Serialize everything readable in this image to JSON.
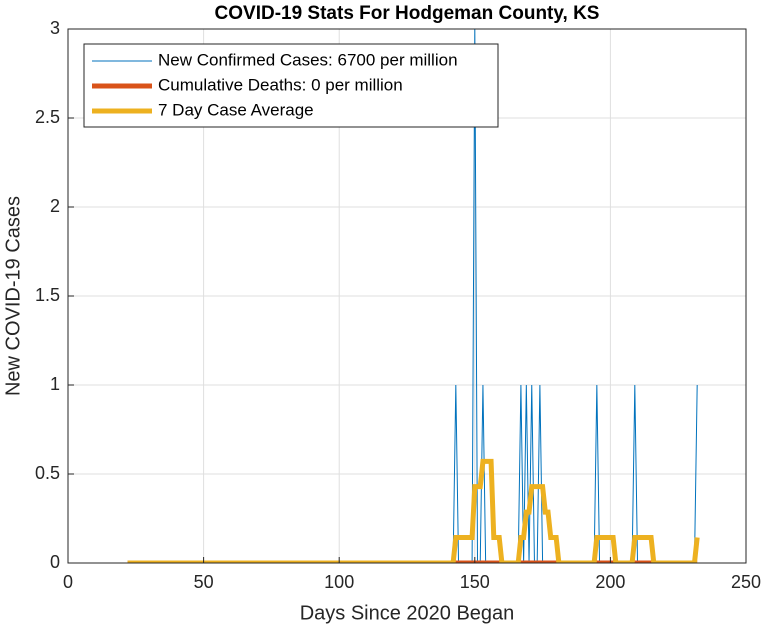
{
  "chart_data": {
    "type": "line",
    "title": "COVID-19 Stats For Hodgeman County, KS",
    "xlabel": "Days Since 2020 Began",
    "ylabel": "New COVID-19 Cases",
    "xlim": [
      0,
      250
    ],
    "ylim": [
      0,
      3
    ],
    "xticks": [
      0,
      50,
      100,
      150,
      200,
      250
    ],
    "yticks": [
      0,
      0.5,
      1,
      1.5,
      2,
      2.5,
      3
    ],
    "grid": true,
    "legend": "upper left",
    "x": [
      22,
      23,
      24,
      25,
      26,
      27,
      28,
      29,
      30,
      31,
      32,
      33,
      34,
      35,
      36,
      37,
      38,
      39,
      40,
      41,
      42,
      43,
      44,
      45,
      46,
      47,
      48,
      49,
      50,
      51,
      52,
      53,
      54,
      55,
      56,
      57,
      58,
      59,
      60,
      61,
      62,
      63,
      64,
      65,
      66,
      67,
      68,
      69,
      70,
      71,
      72,
      73,
      74,
      75,
      76,
      77,
      78,
      79,
      80,
      81,
      82,
      83,
      84,
      85,
      86,
      87,
      88,
      89,
      90,
      91,
      92,
      93,
      94,
      95,
      96,
      97,
      98,
      99,
      100,
      101,
      102,
      103,
      104,
      105,
      106,
      107,
      108,
      109,
      110,
      111,
      112,
      113,
      114,
      115,
      116,
      117,
      118,
      119,
      120,
      121,
      122,
      123,
      124,
      125,
      126,
      127,
      128,
      129,
      130,
      131,
      132,
      133,
      134,
      135,
      136,
      137,
      138,
      139,
      140,
      141,
      142,
      143,
      144,
      145,
      146,
      147,
      148,
      149,
      150,
      151,
      152,
      153,
      154,
      155,
      156,
      157,
      158,
      159,
      160,
      161,
      162,
      163,
      164,
      165,
      166,
      167,
      168,
      169,
      170,
      171,
      172,
      173,
      174,
      175,
      176,
      177,
      178,
      179,
      180,
      181,
      182,
      183,
      184,
      185,
      186,
      187,
      188,
      189,
      190,
      191,
      192,
      193,
      194,
      195,
      196,
      197,
      198,
      199,
      200,
      201,
      202,
      203,
      204,
      205,
      206,
      207,
      208,
      209,
      210,
      211,
      212,
      213,
      214,
      215,
      216,
      217,
      218,
      219,
      220,
      221,
      222,
      223,
      224,
      225,
      226,
      227,
      228,
      229,
      230,
      231,
      232
    ],
    "series": [
      {
        "name": "New Confirmed Cases: 6700 per million",
        "color": "#0072BD",
        "width": 1,
        "values": [
          0,
          0,
          0,
          0,
          0,
          0,
          0,
          0,
          0,
          0,
          0,
          0,
          0,
          0,
          0,
          0,
          0,
          0,
          0,
          0,
          0,
          0,
          0,
          0,
          0,
          0,
          0,
          0,
          0,
          0,
          0,
          0,
          0,
          0,
          0,
          0,
          0,
          0,
          0,
          0,
          0,
          0,
          0,
          0,
          0,
          0,
          0,
          0,
          0,
          0,
          0,
          0,
          0,
          0,
          0,
          0,
          0,
          0,
          0,
          0,
          0,
          0,
          0,
          0,
          0,
          0,
          0,
          0,
          0,
          0,
          0,
          0,
          0,
          0,
          0,
          0,
          0,
          0,
          0,
          0,
          0,
          0,
          0,
          0,
          0,
          0,
          0,
          0,
          0,
          0,
          0,
          0,
          0,
          0,
          0,
          0,
          0,
          0,
          0,
          0,
          0,
          0,
          0,
          0,
          0,
          0,
          0,
          0,
          0,
          0,
          0,
          0,
          0,
          0,
          0,
          0,
          0,
          0,
          0,
          0,
          0,
          1,
          0,
          0,
          0,
          0,
          0,
          0,
          3,
          0,
          0,
          1,
          0,
          0,
          0,
          0,
          0,
          0,
          0,
          0,
          0,
          0,
          0,
          0,
          0,
          1,
          0,
          1,
          0,
          1,
          0,
          0,
          1,
          0,
          0,
          0,
          0,
          0,
          0,
          0,
          0,
          0,
          0,
          0,
          0,
          0,
          0,
          0,
          0,
          0,
          0,
          0,
          0,
          1,
          0,
          0,
          0,
          0,
          0,
          0,
          0,
          0,
          0,
          0,
          0,
          0,
          0,
          1,
          0,
          0,
          0,
          0,
          0,
          0,
          0,
          0,
          0,
          0,
          0,
          0,
          0,
          0,
          0,
          0,
          0,
          0,
          0,
          0,
          0,
          0,
          1
        ]
      },
      {
        "name": "Cumulative Deaths: 0 per million",
        "color": "#D95319",
        "width": 5,
        "values": [
          0,
          0,
          0,
          0,
          0,
          0,
          0,
          0,
          0,
          0,
          0,
          0,
          0,
          0,
          0,
          0,
          0,
          0,
          0,
          0,
          0,
          0,
          0,
          0,
          0,
          0,
          0,
          0,
          0,
          0,
          0,
          0,
          0,
          0,
          0,
          0,
          0,
          0,
          0,
          0,
          0,
          0,
          0,
          0,
          0,
          0,
          0,
          0,
          0,
          0,
          0,
          0,
          0,
          0,
          0,
          0,
          0,
          0,
          0,
          0,
          0,
          0,
          0,
          0,
          0,
          0,
          0,
          0,
          0,
          0,
          0,
          0,
          0,
          0,
          0,
          0,
          0,
          0,
          0,
          0,
          0,
          0,
          0,
          0,
          0,
          0,
          0,
          0,
          0,
          0,
          0,
          0,
          0,
          0,
          0,
          0,
          0,
          0,
          0,
          0,
          0,
          0,
          0,
          0,
          0,
          0,
          0,
          0,
          0,
          0,
          0,
          0,
          0,
          0,
          0,
          0,
          0,
          0,
          0,
          0,
          0,
          0,
          0,
          0,
          0,
          0,
          0,
          0,
          0,
          0,
          0,
          0,
          0,
          0,
          0,
          0,
          0,
          0,
          0,
          0,
          0,
          0,
          0,
          0,
          0,
          0,
          0,
          0,
          0,
          0,
          0,
          0,
          0,
          0,
          0,
          0,
          0,
          0,
          0,
          0,
          0,
          0,
          0,
          0,
          0,
          0,
          0,
          0,
          0,
          0,
          0,
          0,
          0,
          0,
          0,
          0,
          0,
          0,
          0,
          0,
          0,
          0,
          0,
          0,
          0,
          0,
          0,
          0,
          0,
          0,
          0,
          0,
          0,
          0,
          0,
          0,
          0,
          0,
          0,
          0,
          0,
          0,
          0,
          0,
          0,
          0,
          0,
          0,
          0,
          0,
          0
        ]
      },
      {
        "name": "7 Day Case Average",
        "color": "#EDB120",
        "width": 5,
        "values": [
          0,
          0,
          0,
          0,
          0,
          0,
          0,
          0,
          0,
          0,
          0,
          0,
          0,
          0,
          0,
          0,
          0,
          0,
          0,
          0,
          0,
          0,
          0,
          0,
          0,
          0,
          0,
          0,
          0,
          0,
          0,
          0,
          0,
          0,
          0,
          0,
          0,
          0,
          0,
          0,
          0,
          0,
          0,
          0,
          0,
          0,
          0,
          0,
          0,
          0,
          0,
          0,
          0,
          0,
          0,
          0,
          0,
          0,
          0,
          0,
          0,
          0,
          0,
          0,
          0,
          0,
          0,
          0,
          0,
          0,
          0,
          0,
          0,
          0,
          0,
          0,
          0,
          0,
          0,
          0,
          0,
          0,
          0,
          0,
          0,
          0,
          0,
          0,
          0,
          0,
          0,
          0,
          0,
          0,
          0,
          0,
          0,
          0,
          0,
          0,
          0,
          0,
          0,
          0,
          0,
          0,
          0,
          0,
          0,
          0,
          0,
          0,
          0,
          0,
          0,
          0,
          0,
          0,
          0,
          0,
          0,
          0.143,
          0.143,
          0.143,
          0.143,
          0.143,
          0.143,
          0.143,
          0.429,
          0.429,
          0.429,
          0.571,
          0.571,
          0.571,
          0.571,
          0.143,
          0.143,
          0.143,
          0,
          0,
          0,
          0,
          0,
          0,
          0,
          0.143,
          0.143,
          0.286,
          0.286,
          0.429,
          0.429,
          0.429,
          0.429,
          0.429,
          0.286,
          0.286,
          0.143,
          0.143,
          0.143,
          0,
          0,
          0,
          0,
          0,
          0,
          0,
          0,
          0,
          0,
          0,
          0,
          0,
          0,
          0.143,
          0.143,
          0.143,
          0.143,
          0.143,
          0.143,
          0.143,
          0,
          0,
          0,
          0,
          0,
          0,
          0,
          0.143,
          0.143,
          0.143,
          0.143,
          0.143,
          0.143,
          0.143,
          0,
          0,
          0,
          0,
          0,
          0,
          0,
          0,
          0,
          0,
          0,
          0,
          0,
          0,
          0,
          0,
          0.143
        ]
      }
    ]
  }
}
